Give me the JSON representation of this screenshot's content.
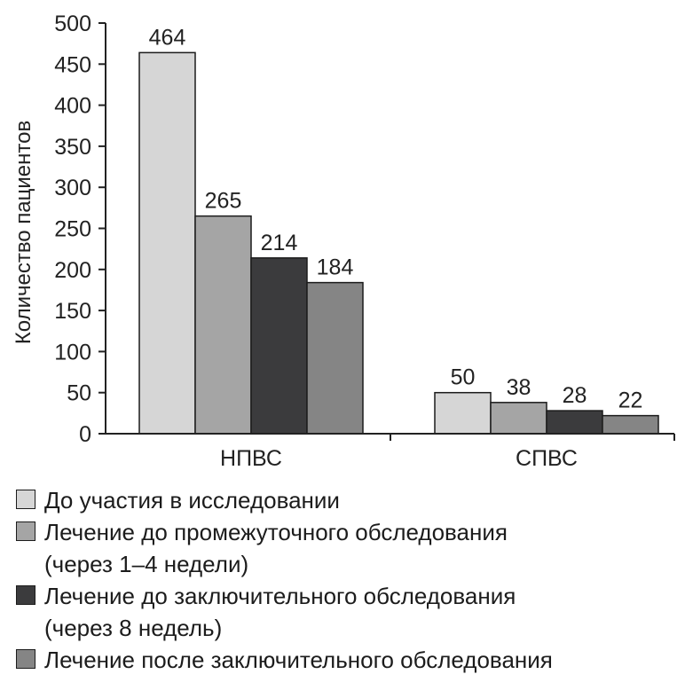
{
  "chart_data": {
    "type": "bar",
    "categories": [
      "НПВС",
      "СПВС"
    ],
    "ylabel": "Количество пациентов",
    "ylim": [
      0,
      500
    ],
    "yticks": [
      0,
      50,
      100,
      150,
      200,
      250,
      300,
      350,
      400,
      450,
      500
    ],
    "series": [
      {
        "name": "До участия в исследовании",
        "values": [
          464,
          50
        ],
        "color": "#d6d6d6"
      },
      {
        "name": "Лечение до промежуточного обследования (через 1–4 недели)",
        "values": [
          265,
          38
        ],
        "color": "#a5a5a5"
      },
      {
        "name": "Лечение до заключительного обследования (через 8 недель)",
        "values": [
          214,
          28
        ],
        "color": "#3b3b3d"
      },
      {
        "name": "Лечение после заключительного обследования",
        "values": [
          184,
          22
        ],
        "color": "#858585"
      }
    ],
    "legend_position": "bottom"
  },
  "legend": [
    {
      "lines": [
        "До участия в исследовании"
      ]
    },
    {
      "lines": [
        "Лечение до промежуточного обследования",
        "(через 1–4 недели)"
      ]
    },
    {
      "lines": [
        "Лечение до заключительного обследования",
        "(через 8 недель)"
      ]
    },
    {
      "lines": [
        "Лечение после заключительного обследования"
      ]
    }
  ]
}
